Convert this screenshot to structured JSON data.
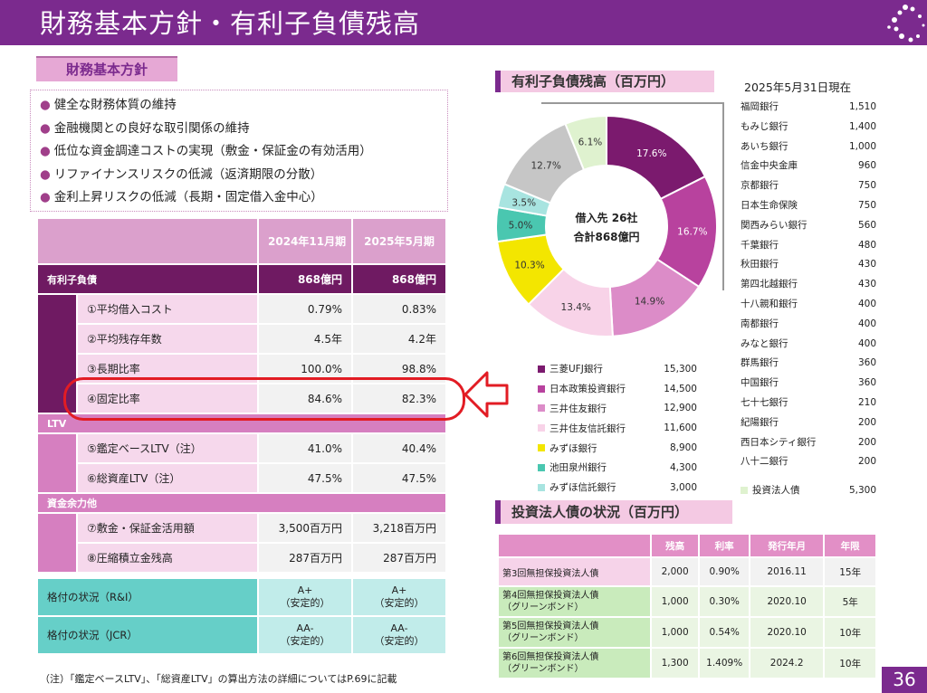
{
  "header": {
    "title": "財務基本方針・有利子負債残高"
  },
  "policy": {
    "heading": "財務基本方針",
    "items": [
      "健全な財務体質の維持",
      "金融機関との良好な取引関係の維持",
      "低位な資金調達コストの実現（敷金・保証金の有効活用）",
      "リファイナンスリスクの低減（返済期限の分散）",
      "金利上昇リスクの低減（長期・固定借入金中心）"
    ]
  },
  "main_table": {
    "col1": "2024年11月期",
    "col2": "2025年5月期",
    "debt_label": "有利子負債",
    "debt_v1": "868億円",
    "debt_v2": "868億円",
    "rows_debt": [
      {
        "label": "①平均借入コスト",
        "v1": "0.79%",
        "v2": "0.83%"
      },
      {
        "label": "②平均残存年数",
        "v1": "4.5年",
        "v2": "4.2年"
      },
      {
        "label": "③長期比率",
        "v1": "100.0%",
        "v2": "98.8%"
      },
      {
        "label": "④固定比率",
        "v1": "84.6%",
        "v2": "82.3%"
      }
    ],
    "ltv_label": "LTV",
    "rows_ltv": [
      {
        "label": "⑤鑑定ベースLTV（注）",
        "v1": "41.0%",
        "v2": "40.4%"
      },
      {
        "label": "⑥総資産LTV（注）",
        "v1": "47.5%",
        "v2": "47.5%"
      }
    ],
    "cash_label": "資金余力他",
    "rows_cash": [
      {
        "label": "⑦敷金・保証金活用額",
        "v1": "3,500百万円",
        "v2": "3,218百万円"
      },
      {
        "label": "⑧圧縮積立金残高",
        "v1": "287百万円",
        "v2": "287百万円"
      }
    ],
    "ri_label": "格付の状況（R&I）",
    "ri_v1": "A+",
    "ri_v1b": "（安定的）",
    "ri_v2": "A+",
    "ri_v2b": "（安定的）",
    "jcr_label": "格付の状況（JCR）",
    "jcr_v1": "AA-",
    "jcr_v1b": "（安定的）",
    "jcr_v2": "AA-",
    "jcr_v2b": "（安定的）"
  },
  "note": "（注）「鑑定ベースLTV」、「総資産LTV」の算出方法の詳細についてはP.69に記載",
  "debt": {
    "heading": "有利子負債残高（百万円）",
    "as_of": "2025年5月31日現在",
    "center_line1": "借入先 26社",
    "center_line2": "合計868億円"
  },
  "chart_data": {
    "type": "pie",
    "slices": [
      {
        "label": "17.6%",
        "value": 17.6,
        "color": "#7b1a6e"
      },
      {
        "label": "16.7%",
        "value": 16.7,
        "color": "#b8429e"
      },
      {
        "label": "14.9%",
        "value": 14.9,
        "color": "#dc8cc8"
      },
      {
        "label": "13.4%",
        "value": 13.4,
        "color": "#f8d3e8"
      },
      {
        "label": "10.3%",
        "value": 10.3,
        "color": "#f3e600"
      },
      {
        "label": "5.0%",
        "value": 5.0,
        "color": "#4ac7b0"
      },
      {
        "label": "3.5%",
        "value": 3.5,
        "color": "#a8e4e0"
      },
      {
        "label": "12.7%",
        "value": 12.7,
        "color": "#c6c6c6"
      },
      {
        "label": "6.1%",
        "value": 6.1,
        "color": "#dff2cf"
      }
    ],
    "legend": [
      {
        "name": "三菱UFJ銀行",
        "value": "15,300",
        "color": "#7b1a6e"
      },
      {
        "name": "日本政策投資銀行",
        "value": "14,500",
        "color": "#b8429e"
      },
      {
        "name": "三井住友銀行",
        "value": "12,900",
        "color": "#dc8cc8"
      },
      {
        "name": "三井住友信託銀行",
        "value": "11,600",
        "color": "#f8d3e8"
      },
      {
        "name": "みずほ銀行",
        "value": "8,900",
        "color": "#f3e600"
      },
      {
        "name": "池田泉州銀行",
        "value": "4,300",
        "color": "#4ac7b0"
      },
      {
        "name": "みずほ信託銀行",
        "value": "3,000",
        "color": "#a8e4e0"
      }
    ],
    "investment_bond": {
      "name": "投資法人債",
      "value": "5,300",
      "color": "#dff2cf"
    }
  },
  "lenders": [
    {
      "name": "福岡銀行",
      "value": "1,510"
    },
    {
      "name": "もみじ銀行",
      "value": "1,400"
    },
    {
      "name": "あいち銀行",
      "value": "1,000"
    },
    {
      "name": "信金中央金庫",
      "value": "960"
    },
    {
      "name": "京都銀行",
      "value": "750"
    },
    {
      "name": "日本生命保険",
      "value": "750"
    },
    {
      "name": "関西みらい銀行",
      "value": "560"
    },
    {
      "name": "千葉銀行",
      "value": "480"
    },
    {
      "name": "秋田銀行",
      "value": "430"
    },
    {
      "name": "第四北越銀行",
      "value": "430"
    },
    {
      "name": "十八親和銀行",
      "value": "400"
    },
    {
      "name": "南都銀行",
      "value": "400"
    },
    {
      "name": "みなと銀行",
      "value": "400"
    },
    {
      "name": "群馬銀行",
      "value": "360"
    },
    {
      "name": "中国銀行",
      "value": "360"
    },
    {
      "name": "七十七銀行",
      "value": "210"
    },
    {
      "name": "紀陽銀行",
      "value": "200"
    },
    {
      "name": "西日本シティ銀行",
      "value": "200"
    },
    {
      "name": "八十二銀行",
      "value": "200"
    }
  ],
  "bonds": {
    "heading": "投資法人債の状況（百万円）",
    "headers": [
      "残高",
      "利率",
      "発行年月",
      "年限"
    ],
    "rows": [
      {
        "name1": "第3回無担保投資法人債",
        "name2": "",
        "amount": "2,000",
        "rate": "0.90%",
        "issued": "2016.11",
        "term": "15年"
      },
      {
        "name1": "第4回無担保投資法人債",
        "name2": "（グリーンボンド）",
        "amount": "1,000",
        "rate": "0.30%",
        "issued": "2020.10",
        "term": "5年"
      },
      {
        "name1": "第5回無担保投資法人債",
        "name2": "（グリーンボンド）",
        "amount": "1,000",
        "rate": "0.54%",
        "issued": "2020.10",
        "term": "10年"
      },
      {
        "name1": "第6回無担保投資法人債",
        "name2": "（グリーンボンド）",
        "amount": "1,300",
        "rate": "1.409%",
        "issued": "2024.2",
        "term": "10年"
      }
    ]
  },
  "page_number": "36"
}
